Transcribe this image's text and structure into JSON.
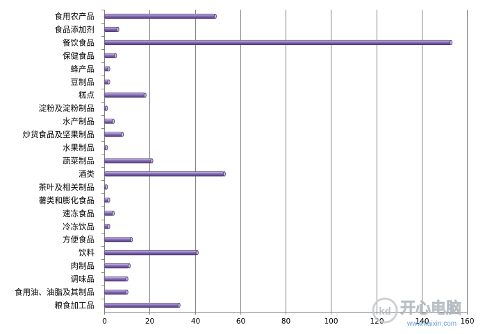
{
  "chart_data": {
    "type": "bar",
    "orientation": "horizontal",
    "title": "",
    "xlabel": "",
    "ylabel": "",
    "categories": [
      "食用农产品",
      "食品添加剂",
      "餐饮食品",
      "保健食品",
      "蜂产品",
      "豆制品",
      "糕点",
      "淀粉及淀粉制品",
      "水产制品",
      "炒货食品及坚果制品",
      "水果制品",
      "蔬菜制品",
      "酒类",
      "茶叶及相关制品",
      "薯类和膨化食品",
      "速冻食品",
      "冷冻饮品",
      "方便食品",
      "饮料",
      "肉制品",
      "调味品",
      "食用油、油脂及其制品",
      "粮食加工品"
    ],
    "values": [
      49,
      6,
      153,
      5,
      2,
      2,
      18,
      1,
      4,
      8,
      1,
      21,
      53,
      1,
      2,
      4,
      2,
      12,
      41,
      11,
      10,
      10,
      33
    ],
    "xlim": [
      0,
      160
    ],
    "x_ticks": [
      0,
      20,
      40,
      60,
      80,
      100,
      120,
      140,
      160
    ],
    "grid": true,
    "legend": "none",
    "bar_color": "#8a6fb9"
  },
  "watermark": {
    "text": "开心电脑",
    "url": "www.kaixin.com",
    "logo_text": "kd"
  },
  "colors": {
    "background": "#ffffff",
    "grid": "#808080",
    "bar": "#8a6fb9"
  }
}
